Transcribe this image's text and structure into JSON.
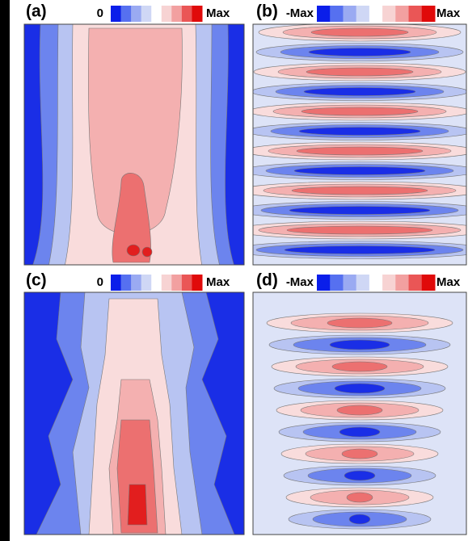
{
  "panels": [
    {
      "label": "(a)",
      "scale_min": "0",
      "scale_max": "Max"
    },
    {
      "label": "(b)",
      "scale_min": "-Max",
      "scale_max": "Max"
    },
    {
      "label": "(c)",
      "scale_min": "0",
      "scale_max": "Max"
    },
    {
      "label": "(d)",
      "scale_min": "-Max",
      "scale_max": "Max"
    }
  ]
}
